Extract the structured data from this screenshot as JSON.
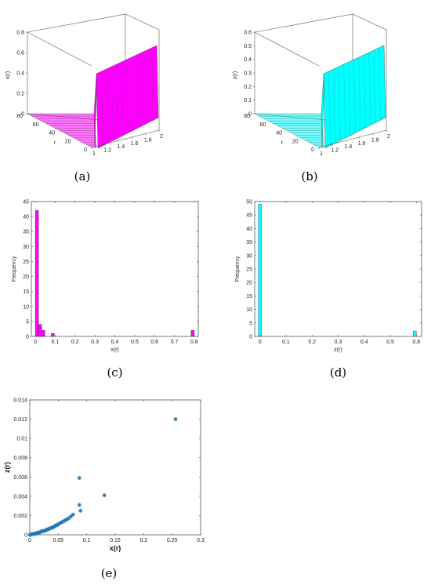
{
  "captions": [
    "(a)",
    "(b)",
    "(c)",
    "(d)",
    "(e)"
  ],
  "chart_data": [
    {
      "type": "surface3d",
      "panel": "a",
      "color": "#ff00ff",
      "zlabel": "x(r)",
      "ylabel": "r",
      "xlabel": "",
      "x_ticks": [
        "1",
        "1.2",
        "1.4",
        "1.6",
        "1.8",
        "2"
      ],
      "y_ticks": [
        "0",
        "20",
        "40",
        "60",
        "80"
      ],
      "z_ticks": [
        "0",
        "0.2",
        "0.4",
        "0.6",
        "0.8"
      ],
      "xlim": [
        1,
        2
      ],
      "ylim": [
        0,
        80
      ],
      "zlim": [
        0,
        0.8
      ],
      "plateau_value": 0.8,
      "step_at_r": 2,
      "floor_value": 0
    },
    {
      "type": "surface3d",
      "panel": "b",
      "color": "#00ffff",
      "zlabel": "z(r)",
      "ylabel": "r",
      "xlabel": "",
      "x_ticks": [
        "1",
        "1.2",
        "1.4",
        "1.6",
        "1.8",
        "2"
      ],
      "y_ticks": [
        "0",
        "20",
        "40",
        "60",
        "80"
      ],
      "z_ticks": [
        "0",
        "0.1",
        "0.2",
        "0.3",
        "0.4",
        "0.5",
        "0.6"
      ],
      "xlim": [
        1,
        2
      ],
      "ylim": [
        0,
        80
      ],
      "zlim": [
        0,
        0.6
      ],
      "plateau_value": 0.6,
      "step_at_r": 2,
      "floor_value": 0
    },
    {
      "type": "bar",
      "panel": "c",
      "color": "#ff00ff",
      "xlabel": "x(r)",
      "ylabel": "Frequency",
      "xlim": [
        -0.02,
        0.82
      ],
      "ylim": [
        0,
        45
      ],
      "x_ticks": [
        0,
        0.1,
        0.2,
        0.3,
        0.4,
        0.5,
        0.6,
        0.7,
        0.8
      ],
      "y_ticks": [
        0,
        5,
        10,
        15,
        20,
        25,
        30,
        35,
        40,
        45
      ],
      "bin_width": 0.016,
      "bins": [
        {
          "x": 0.008,
          "value": 42
        },
        {
          "x": 0.024,
          "value": 4
        },
        {
          "x": 0.04,
          "value": 2
        },
        {
          "x": 0.088,
          "value": 1
        },
        {
          "x": 0.792,
          "value": 2
        }
      ]
    },
    {
      "type": "bar",
      "panel": "d",
      "color": "#00ffff",
      "xlabel": "z(r)",
      "ylabel": "Frequency",
      "xlim": [
        -0.02,
        0.62
      ],
      "ylim": [
        0,
        50
      ],
      "x_ticks": [
        0,
        0.1,
        0.2,
        0.3,
        0.4,
        0.5,
        0.6
      ],
      "y_ticks": [
        0,
        5,
        10,
        15,
        20,
        25,
        30,
        35,
        40,
        45,
        50
      ],
      "bin_width": 0.012,
      "bins": [
        {
          "x": 0.0,
          "value": 49
        },
        {
          "x": 0.594,
          "value": 2
        }
      ]
    },
    {
      "type": "scatter",
      "panel": "e",
      "color": "#1f77b4",
      "marker": "asterisk",
      "xlabel": "x(r)",
      "ylabel": "z(r)",
      "xlim": [
        0,
        0.3
      ],
      "ylim": [
        0,
        0.014
      ],
      "x_ticks": [
        "0",
        "0.05",
        "0.1",
        "0.15",
        "0.2",
        "0.25",
        "0.3"
      ],
      "y_ticks": [
        "0",
        "0.002",
        "0.004",
        "0.006",
        "0.008",
        "0.01",
        "0.012",
        "0.014"
      ],
      "points": [
        [
          0.0,
          0.0
        ],
        [
          0.002,
          0.0
        ],
        [
          0.004,
          0.0001
        ],
        [
          0.006,
          0.0001
        ],
        [
          0.008,
          0.0001
        ],
        [
          0.01,
          0.0001
        ],
        [
          0.012,
          0.0002
        ],
        [
          0.014,
          0.0002
        ],
        [
          0.016,
          0.0002
        ],
        [
          0.018,
          0.0003
        ],
        [
          0.02,
          0.0003
        ],
        [
          0.022,
          0.0004
        ],
        [
          0.024,
          0.0004
        ],
        [
          0.026,
          0.0004
        ],
        [
          0.028,
          0.0005
        ],
        [
          0.03,
          0.0005
        ],
        [
          0.032,
          0.0006
        ],
        [
          0.034,
          0.0006
        ],
        [
          0.036,
          0.0007
        ],
        [
          0.038,
          0.0007
        ],
        [
          0.04,
          0.0008
        ],
        [
          0.042,
          0.0008
        ],
        [
          0.044,
          0.0009
        ],
        [
          0.046,
          0.001
        ],
        [
          0.048,
          0.001
        ],
        [
          0.05,
          0.0011
        ],
        [
          0.053,
          0.0012
        ],
        [
          0.056,
          0.0013
        ],
        [
          0.059,
          0.0014
        ],
        [
          0.062,
          0.0015
        ],
        [
          0.065,
          0.0016
        ],
        [
          0.068,
          0.0017
        ],
        [
          0.072,
          0.0019
        ],
        [
          0.076,
          0.0021
        ],
        [
          0.087,
          0.0031
        ],
        [
          0.089,
          0.0025
        ],
        [
          0.087,
          0.0059
        ],
        [
          0.131,
          0.0041
        ],
        [
          0.256,
          0.012
        ]
      ]
    }
  ]
}
